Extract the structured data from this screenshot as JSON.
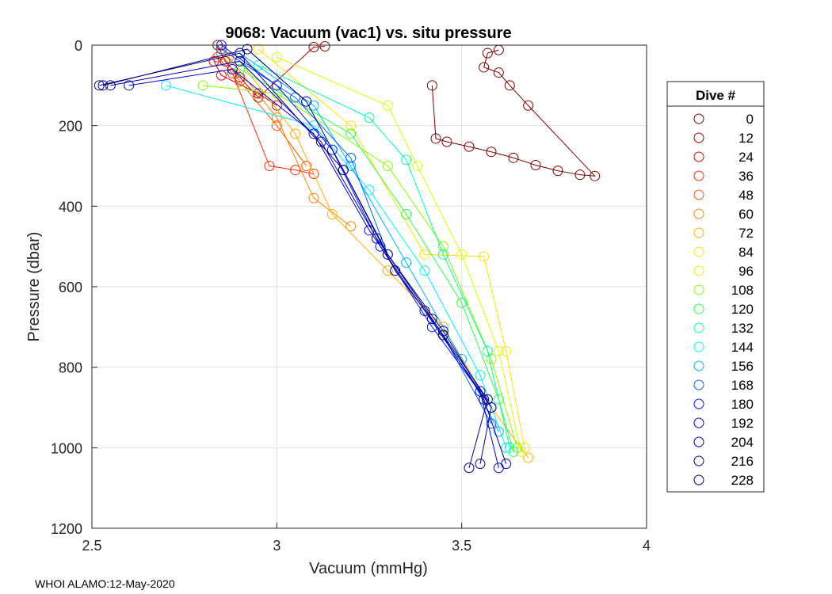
{
  "chart_data": {
    "type": "scatter",
    "title": "9068: Vacuum (vac1) vs. situ pressure",
    "xlabel": "Vacuum (mmHg)",
    "ylabel": "Pressure (dbar)",
    "xlim": [
      2.5,
      4
    ],
    "ylim": [
      0,
      1200
    ],
    "y_reversed": true,
    "grid": true,
    "x_ticks": [
      2.5,
      3,
      3.5,
      4
    ],
    "x_tick_labels": [
      "2.5",
      "3",
      "3.5",
      "4"
    ],
    "y_ticks": [
      0,
      200,
      400,
      600,
      800,
      1000,
      1200
    ],
    "y_tick_labels": [
      "0",
      "200",
      "400",
      "600",
      "800",
      "1000",
      "1200"
    ],
    "legend_title": "Dive #",
    "legend_position": "outside-right",
    "series": [
      {
        "name": "0",
        "color": "#800000",
        "points": [
          [
            3.42,
            100
          ],
          [
            3.43,
            232
          ],
          [
            3.46,
            240
          ],
          [
            3.52,
            252
          ],
          [
            3.58,
            265
          ],
          [
            3.64,
            280
          ],
          [
            3.7,
            298
          ],
          [
            3.76,
            312
          ],
          [
            3.82,
            322
          ],
          [
            3.86,
            325
          ],
          [
            3.68,
            150
          ],
          [
            3.63,
            100
          ],
          [
            3.6,
            68
          ],
          [
            3.56,
            55
          ],
          [
            3.57,
            20
          ],
          [
            3.6,
            12
          ]
        ]
      },
      {
        "name": "12",
        "color": "#a00000",
        "points": [
          [
            2.84,
            0
          ],
          [
            2.86,
            40
          ],
          [
            2.9,
            80
          ],
          [
            2.95,
            130
          ],
          [
            3.1,
            5
          ],
          [
            3.13,
            3
          ]
        ]
      },
      {
        "name": "24",
        "color": "#e00000",
        "points": [
          [
            2.83,
            40
          ],
          [
            2.85,
            75
          ],
          [
            2.95,
            120
          ],
          [
            3.0,
            150
          ]
        ]
      },
      {
        "name": "36",
        "color": "#ff2a00",
        "points": [
          [
            2.84,
            30
          ],
          [
            2.88,
            70
          ],
          [
            2.98,
            300
          ],
          [
            3.05,
            310
          ],
          [
            3.1,
            320
          ]
        ]
      },
      {
        "name": "48",
        "color": "#ff5500",
        "points": [
          [
            2.85,
            20
          ],
          [
            2.9,
            90
          ],
          [
            3.0,
            200
          ],
          [
            3.08,
            300
          ]
        ]
      },
      {
        "name": "60",
        "color": "#ff8000",
        "points": [
          [
            2.87,
            30
          ],
          [
            3.0,
            180
          ],
          [
            3.1,
            380
          ],
          [
            3.2,
            450
          ]
        ]
      },
      {
        "name": "72",
        "color": "#ffaa00",
        "points": [
          [
            2.9,
            40
          ],
          [
            3.05,
            220
          ],
          [
            3.15,
            420
          ],
          [
            3.3,
            560
          ],
          [
            3.45,
            700
          ],
          [
            3.58,
            900
          ],
          [
            3.68,
            1025
          ]
        ]
      },
      {
        "name": "84",
        "color": "#ffe000",
        "points": [
          [
            2.95,
            10
          ],
          [
            3.2,
            200
          ],
          [
            3.4,
            520
          ],
          [
            3.56,
            525
          ],
          [
            3.62,
            760
          ],
          [
            3.67,
            1000
          ]
        ]
      },
      {
        "name": "96",
        "color": "#d4ff00",
        "points": [
          [
            3.0,
            30
          ],
          [
            3.3,
            150
          ],
          [
            3.38,
            300
          ],
          [
            3.5,
            520
          ],
          [
            3.6,
            760
          ],
          [
            3.66,
            1010
          ]
        ]
      },
      {
        "name": "108",
        "color": "#80ff00",
        "points": [
          [
            2.8,
            100
          ],
          [
            3.0,
            120
          ],
          [
            3.3,
            300
          ],
          [
            3.45,
            500
          ],
          [
            3.58,
            780
          ],
          [
            3.65,
            1000
          ]
        ]
      },
      {
        "name": "120",
        "color": "#2aff40",
        "points": [
          [
            2.9,
            60
          ],
          [
            3.2,
            220
          ],
          [
            3.35,
            420
          ],
          [
            3.5,
            640
          ],
          [
            3.6,
            880
          ],
          [
            3.64,
            1010
          ]
        ]
      },
      {
        "name": "132",
        "color": "#00ff9f",
        "points": [
          [
            2.95,
            50
          ],
          [
            3.25,
            180
          ],
          [
            3.35,
            285
          ],
          [
            3.45,
            520
          ],
          [
            3.57,
            760
          ],
          [
            3.63,
            1000
          ]
        ]
      },
      {
        "name": "144",
        "color": "#00f0ff",
        "points": [
          [
            2.7,
            100
          ],
          [
            3.1,
            200
          ],
          [
            3.25,
            360
          ],
          [
            3.4,
            560
          ],
          [
            3.55,
            820
          ],
          [
            3.62,
            1000
          ]
        ]
      },
      {
        "name": "156",
        "color": "#00b0ff",
        "points": [
          [
            2.9,
            20
          ],
          [
            3.1,
            150
          ],
          [
            3.2,
            300
          ],
          [
            3.35,
            540
          ],
          [
            3.5,
            780
          ],
          [
            3.6,
            960
          ]
        ]
      },
      {
        "name": "168",
        "color": "#0060ff",
        "points": [
          [
            2.85,
            10
          ],
          [
            3.05,
            130
          ],
          [
            3.2,
            280
          ],
          [
            3.3,
            520
          ],
          [
            3.45,
            720
          ],
          [
            3.58,
            940
          ]
        ]
      },
      {
        "name": "180",
        "color": "#0010ff",
        "points": [
          [
            2.85,
            0
          ],
          [
            3.0,
            100
          ],
          [
            3.15,
            260
          ],
          [
            3.28,
            500
          ],
          [
            3.42,
            700
          ],
          [
            3.58,
            900
          ]
        ]
      },
      {
        "name": "192",
        "color": "#0000d0",
        "points": [
          [
            2.6,
            100
          ],
          [
            2.88,
            60
          ],
          [
            3.1,
            220
          ],
          [
            3.25,
            460
          ],
          [
            3.4,
            660
          ],
          [
            3.55,
            860
          ],
          [
            3.6,
            1050
          ]
        ]
      },
      {
        "name": "204",
        "color": "#0000a8",
        "points": [
          [
            2.55,
            100
          ],
          [
            2.9,
            40
          ],
          [
            3.12,
            240
          ],
          [
            3.27,
            480
          ],
          [
            3.42,
            680
          ],
          [
            3.56,
            880
          ],
          [
            3.62,
            1040
          ]
        ]
      },
      {
        "name": "216",
        "color": "#000090",
        "points": [
          [
            2.52,
            100
          ],
          [
            2.9,
            20
          ],
          [
            3.18,
            310
          ],
          [
            3.3,
            520
          ],
          [
            3.45,
            710
          ],
          [
            3.58,
            900
          ],
          [
            3.55,
            1040
          ]
        ]
      },
      {
        "name": "228",
        "color": "#000080",
        "points": [
          [
            2.53,
            100
          ],
          [
            2.92,
            10
          ],
          [
            3.08,
            140
          ],
          [
            3.18,
            310
          ],
          [
            3.32,
            560
          ],
          [
            3.45,
            720
          ],
          [
            3.57,
            880
          ],
          [
            3.52,
            1050
          ]
        ]
      }
    ]
  },
  "footer": "WHOI ALAMO:12-May-2020"
}
